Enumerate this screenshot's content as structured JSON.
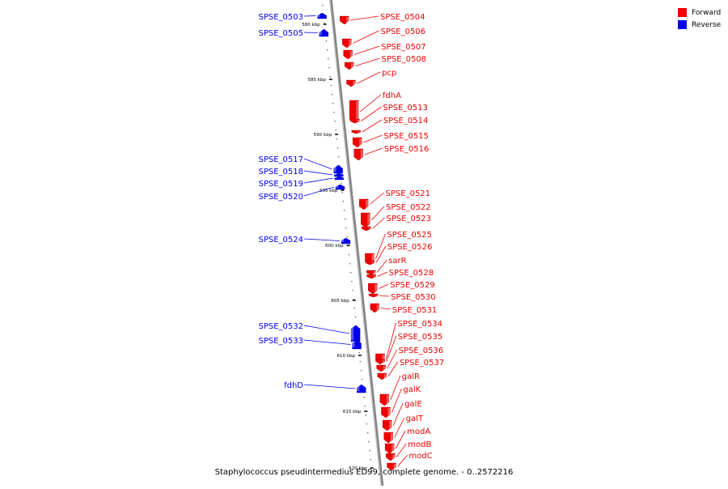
{
  "legend": {
    "forward_label": "Forward",
    "reverse_label": "Reverse",
    "forward_color": "#ee0000",
    "reverse_color": "#0000ee"
  },
  "caption": "Staphylococcus pseudintermedius ED99, complete genome. - 0..2572216",
  "kbp_ticks": [
    {
      "label": "580 kbp",
      "kbp": 580
    },
    {
      "label": "585 kbp",
      "kbp": 585
    },
    {
      "label": "590 kbp",
      "kbp": 590
    },
    {
      "label": "595 kbp",
      "kbp": 595
    },
    {
      "label": "600 kbp",
      "kbp": 600
    },
    {
      "label": "605 kbp",
      "kbp": 605
    },
    {
      "label": "610 kbp",
      "kbp": 610
    },
    {
      "label": "615 kbp",
      "kbp": 615
    },
    {
      "label": "620 kbp",
      "kbp": 620
    }
  ],
  "genes": [
    {
      "name": "SPSE_0503",
      "strand": "reverse"
    },
    {
      "name": "SPSE_0504",
      "strand": "forward"
    },
    {
      "name": "SPSE_0505",
      "strand": "reverse"
    },
    {
      "name": "SPSE_0506",
      "strand": "forward"
    },
    {
      "name": "SPSE_0507",
      "strand": "forward"
    },
    {
      "name": "SPSE_0508",
      "strand": "forward"
    },
    {
      "name": "pcp",
      "strand": "forward"
    },
    {
      "name": "fdhA",
      "strand": "forward"
    },
    {
      "name": "SPSE_0513",
      "strand": "forward"
    },
    {
      "name": "SPSE_0514",
      "strand": "forward"
    },
    {
      "name": "SPSE_0515",
      "strand": "forward"
    },
    {
      "name": "SPSE_0516",
      "strand": "forward"
    },
    {
      "name": "SPSE_0517",
      "strand": "reverse"
    },
    {
      "name": "SPSE_0518",
      "strand": "reverse"
    },
    {
      "name": "SPSE_0519",
      "strand": "reverse"
    },
    {
      "name": "SPSE_0520",
      "strand": "reverse"
    },
    {
      "name": "SPSE_0521",
      "strand": "forward"
    },
    {
      "name": "SPSE_0522",
      "strand": "forward"
    },
    {
      "name": "SPSE_0523",
      "strand": "forward"
    },
    {
      "name": "SPSE_0524",
      "strand": "reverse"
    },
    {
      "name": "SPSE_0525",
      "strand": "forward"
    },
    {
      "name": "SPSE_0526",
      "strand": "forward"
    },
    {
      "name": "sarR",
      "strand": "forward"
    },
    {
      "name": "SPSE_0528",
      "strand": "forward"
    },
    {
      "name": "SPSE_0529",
      "strand": "forward"
    },
    {
      "name": "SPSE_0530",
      "strand": "forward"
    },
    {
      "name": "SPSE_0531",
      "strand": "forward"
    },
    {
      "name": "SPSE_0532",
      "strand": "reverse"
    },
    {
      "name": "SPSE_0533",
      "strand": "reverse"
    },
    {
      "name": "SPSE_0534",
      "strand": "forward"
    },
    {
      "name": "SPSE_0535",
      "strand": "forward"
    },
    {
      "name": "SPSE_0536",
      "strand": "forward"
    },
    {
      "name": "SPSE_0537",
      "strand": "forward"
    },
    {
      "name": "fdhD",
      "strand": "reverse"
    },
    {
      "name": "galR",
      "strand": "forward"
    },
    {
      "name": "galK",
      "strand": "forward"
    },
    {
      "name": "galE",
      "strand": "forward"
    },
    {
      "name": "galT",
      "strand": "forward"
    },
    {
      "name": "modA",
      "strand": "forward"
    },
    {
      "name": "modB",
      "strand": "forward"
    },
    {
      "name": "modC",
      "strand": "forward"
    }
  ]
}
